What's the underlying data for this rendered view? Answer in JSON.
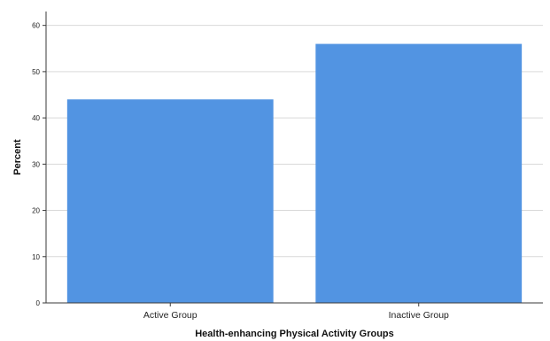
{
  "chart_data": {
    "type": "bar",
    "title": "",
    "categories": [
      "Active Group",
      "Inactive Group"
    ],
    "values": [
      44,
      56
    ],
    "xlabel": "Health-enhancing Physical Activity Groups",
    "ylabel": "Percent",
    "ylim": [
      0,
      63
    ],
    "yticks": [
      0,
      10,
      20,
      30,
      40,
      50,
      60
    ],
    "grid": true,
    "legend": "none",
    "colors": {
      "bar": "#5294e2",
      "grid": "#d9d9d9",
      "axis": "#3a3a3a"
    }
  }
}
